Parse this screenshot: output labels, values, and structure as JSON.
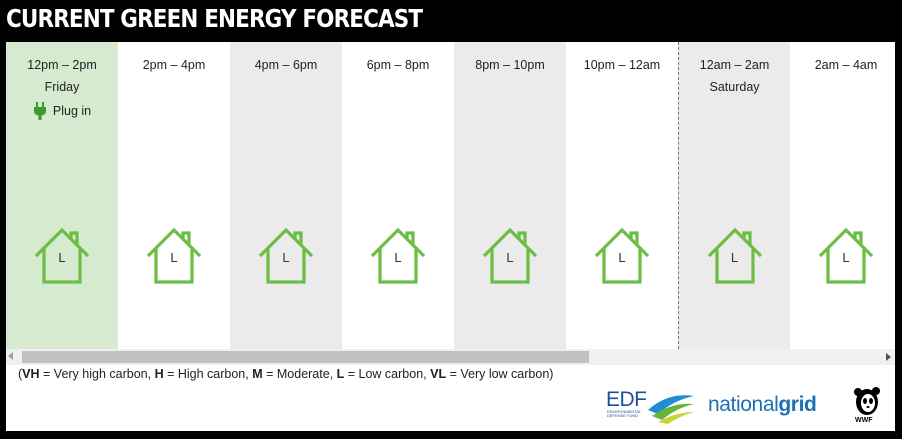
{
  "title": "CURRENT GREEN ENERGY FORECAST",
  "slots": [
    {
      "time": "12pm – 2pm",
      "day": "Friday",
      "action": "Plug in",
      "level": "L"
    },
    {
      "time": "2pm – 4pm",
      "day": "",
      "level": "L"
    },
    {
      "time": "4pm – 6pm",
      "day": "",
      "level": "L"
    },
    {
      "time": "6pm – 8pm",
      "day": "",
      "level": "L"
    },
    {
      "time": "8pm – 10pm",
      "day": "",
      "level": "L"
    },
    {
      "time": "10pm – 12am",
      "day": "",
      "level": "L"
    },
    {
      "time": "12am – 2am",
      "day": "Saturday",
      "level": "L"
    },
    {
      "time": "2am – 4am",
      "day": "",
      "level": "L"
    }
  ],
  "legend": [
    {
      "code": "VH",
      "desc": "Very high carbon"
    },
    {
      "code": "H",
      "desc": "High carbon"
    },
    {
      "code": "M",
      "desc": "Moderate"
    },
    {
      "code": "L",
      "desc": "Low carbon"
    },
    {
      "code": "VL",
      "desc": "Very low carbon"
    }
  ],
  "logos": {
    "edf": "EDF",
    "edf_sub": "ENVIRONMENTAL DEFENSE FUND",
    "ng_part1": "national",
    "ng_part2": "grid",
    "wwf": "WWF"
  },
  "colors": {
    "house_green": "#6cbd45",
    "current_slot_bg": "#d6ead0",
    "alt_slot_bg": "#ebebeb"
  }
}
